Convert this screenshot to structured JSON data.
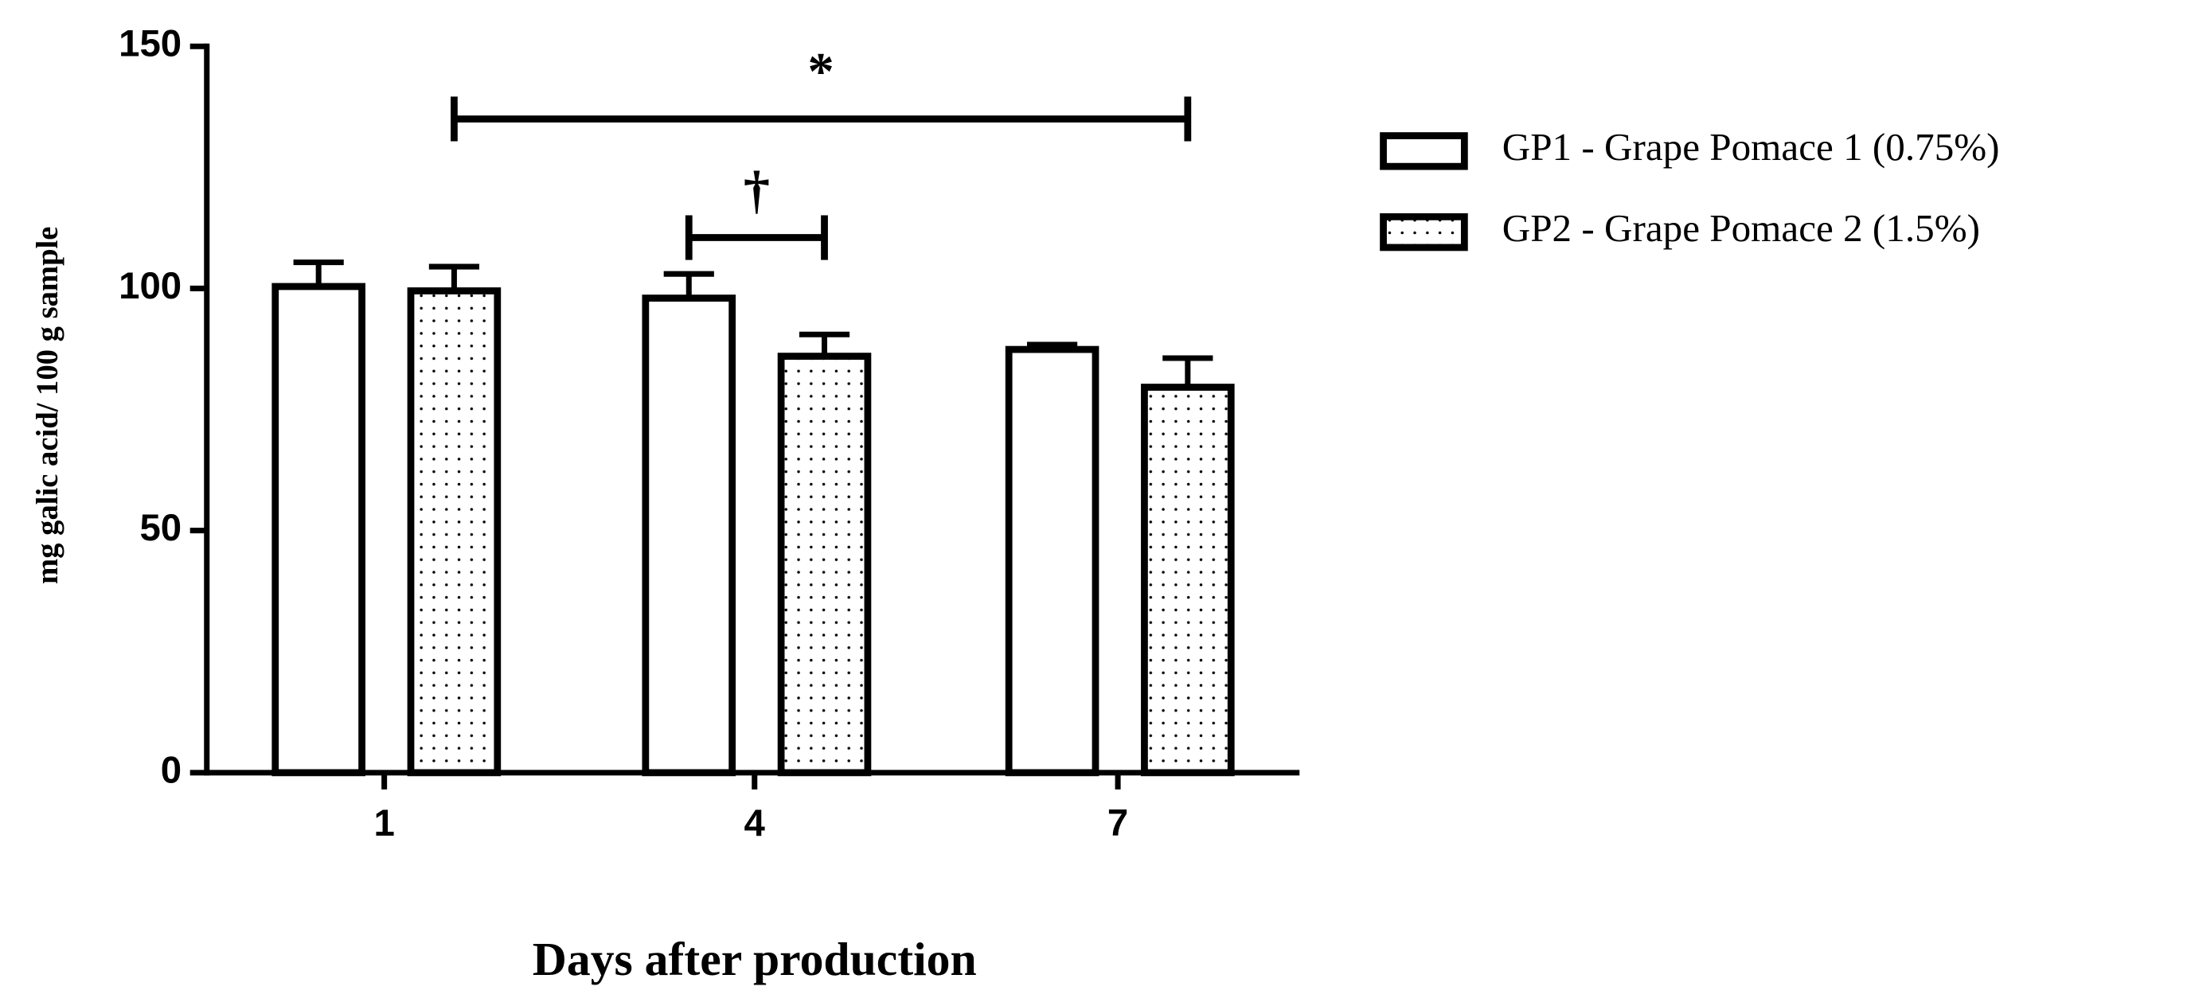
{
  "chart_data": {
    "type": "bar",
    "y_label": "mg galic acid/ 100 g sample",
    "x_label": "Days after production",
    "categories": [
      "1",
      "4",
      "7"
    ],
    "series": [
      {
        "name": "GP1 - Grape Pomace 1 (0.75%)",
        "color": "#ffffff",
        "values": [
          100.4,
          98,
          87.4
        ],
        "errors": [
          5,
          5,
          1
        ]
      },
      {
        "name": "GP2 - Grape Pomace 2 (1.5%)",
        "color": "#ffffff",
        "hatch": "dots",
        "values": [
          99.5,
          86,
          79.6
        ],
        "errors": [
          5,
          4.5,
          6
        ]
      }
    ],
    "annotations": [
      {
        "text": "*",
        "y": 135
      },
      {
        "text": "†",
        "y": 110.5
      }
    ],
    "ylim": [
      0,
      150
    ],
    "yticks": [
      0,
      50,
      100,
      150
    ],
    "grid": false,
    "legend": "right"
  }
}
